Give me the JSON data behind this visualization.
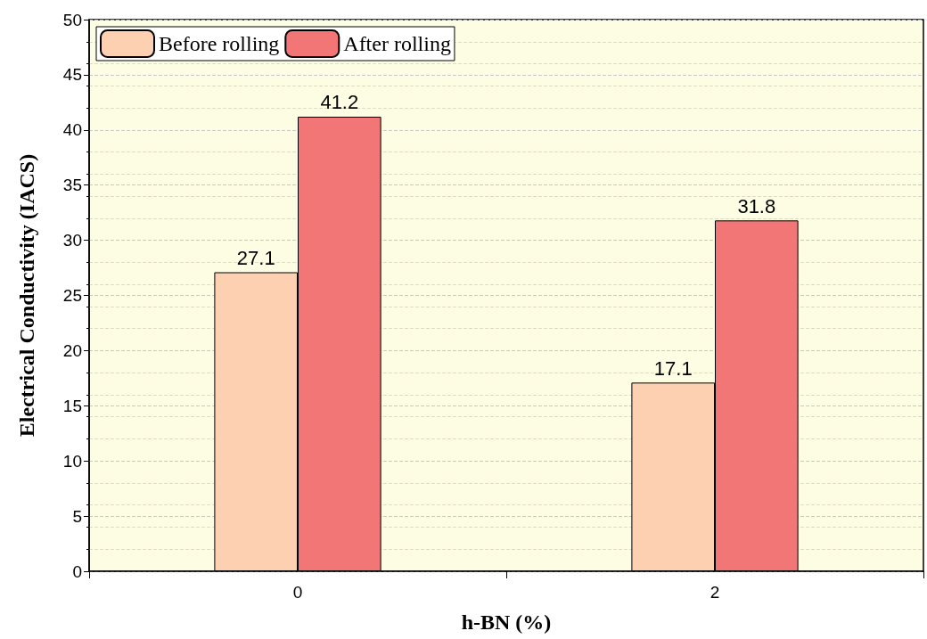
{
  "chart_data": {
    "type": "bar",
    "xlabel": "h-BN (%)",
    "ylabel": "Electrical Conductivity (IACS)",
    "categories": [
      "0",
      "2"
    ],
    "series": [
      {
        "name": "Before rolling",
        "color": "#fdd0b2",
        "values": [
          27.1,
          17.1
        ]
      },
      {
        "name": "After rolling",
        "color": "#f27676",
        "values": [
          41.2,
          31.8
        ]
      }
    ],
    "ylim": [
      0,
      50
    ],
    "yticks": [
      0,
      5,
      10,
      15,
      20,
      25,
      30,
      35,
      40,
      45,
      50
    ],
    "grid": "y",
    "legend": "top left",
    "data_labels": true
  }
}
